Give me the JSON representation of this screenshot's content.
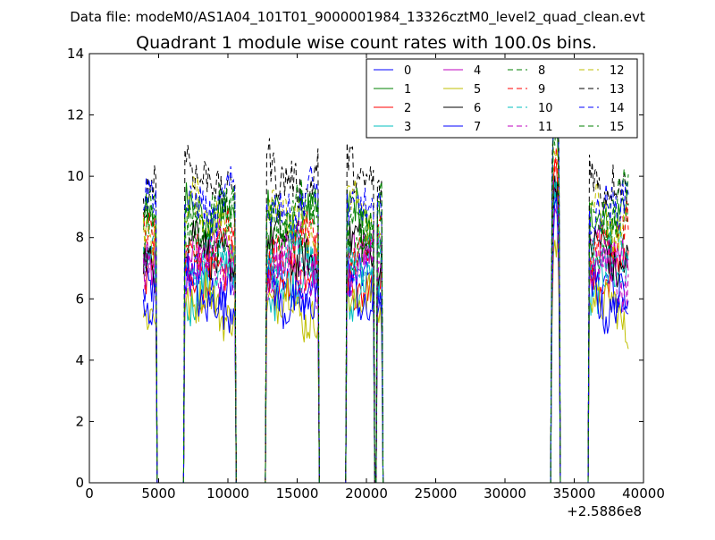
{
  "chart_data": {
    "type": "line",
    "suptitle": "Data file: modeM0/AS1A04_101T01_9000001984_13326cztM0_level2_quad_clean.evt",
    "title": "Quadrant 1 module wise count rates with 100.0s bins.",
    "xlabel": "",
    "ylabel": "",
    "xlim": [
      0,
      40000
    ],
    "ylim": [
      0,
      14
    ],
    "x_offset_label": "+2.5886e8",
    "xticks": [
      0,
      5000,
      10000,
      15000,
      20000,
      25000,
      30000,
      35000,
      40000
    ],
    "xtick_labels": [
      "0",
      "5000",
      "10000",
      "15000",
      "20000",
      "25000",
      "30000",
      "35000",
      "40000"
    ],
    "yticks": [
      0,
      2,
      4,
      6,
      8,
      10,
      12,
      14
    ],
    "ytick_labels": [
      "0",
      "2",
      "4",
      "6",
      "8",
      "10",
      "12",
      "14"
    ],
    "grid": false,
    "legend_position": "top-right",
    "legend_columns": 4,
    "active_segments": [
      [
        3900,
        4800
      ],
      [
        6900,
        10500
      ],
      [
        12800,
        14600
      ],
      [
        14700,
        16500
      ],
      [
        18600,
        20500
      ],
      [
        20800,
        21100
      ],
      [
        33400,
        33900
      ],
      [
        36100,
        38900
      ]
    ],
    "series": [
      {
        "name": "0",
        "color": "#0000ff",
        "dash": false,
        "level": 6.6
      },
      {
        "name": "1",
        "color": "#008000",
        "dash": false,
        "level": 9.0
      },
      {
        "name": "2",
        "color": "#ff0000",
        "dash": false,
        "level": 6.9
      },
      {
        "name": "3",
        "color": "#00bfbf",
        "dash": false,
        "level": 6.4
      },
      {
        "name": "4",
        "color": "#bf00bf",
        "dash": false,
        "level": 7.2
      },
      {
        "name": "5",
        "color": "#bfbf00",
        "dash": false,
        "level": 5.6
      },
      {
        "name": "6",
        "color": "#000000",
        "dash": false,
        "level": 7.6
      },
      {
        "name": "7",
        "color": "#0000ff",
        "dash": false,
        "level": 6.2
      },
      {
        "name": "8",
        "color": "#008000",
        "dash": true,
        "level": 8.3
      },
      {
        "name": "9",
        "color": "#ff0000",
        "dash": true,
        "level": 7.7
      },
      {
        "name": "10",
        "color": "#00bfbf",
        "dash": true,
        "level": 7.1
      },
      {
        "name": "11",
        "color": "#bf00bf",
        "dash": true,
        "level": 6.7
      },
      {
        "name": "12",
        "color": "#bfbf00",
        "dash": true,
        "level": 8.6
      },
      {
        "name": "13",
        "color": "#000000",
        "dash": true,
        "level": 10.1
      },
      {
        "name": "14",
        "color": "#0000ff",
        "dash": true,
        "level": 9.3
      },
      {
        "name": "15",
        "color": "#008000",
        "dash": true,
        "level": 8.8
      }
    ]
  }
}
